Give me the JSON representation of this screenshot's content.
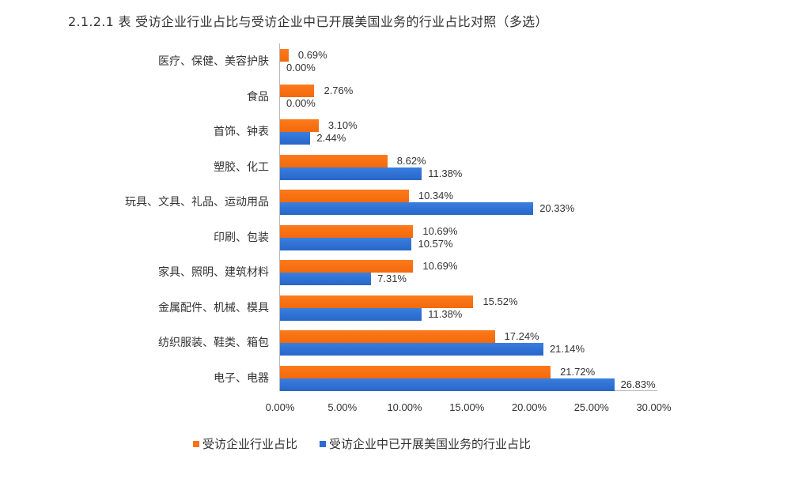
{
  "title": "2.1.2.1 表  受访企业行业占比与受访企业中已开展美国业务的行业占比对照（多选）",
  "colors": {
    "series1": "#f97316",
    "series2": "#2b6cd0"
  },
  "chart_data": {
    "type": "bar",
    "orientation": "horizontal",
    "title": "2.1.2.1 表  受访企业行业占比与受访企业中已开展美国业务的行业占比对照（多选）",
    "xlabel": "",
    "ylabel": "",
    "xlim": [
      0,
      30
    ],
    "x_ticks": [
      "0.00%",
      "5.00%",
      "10.00%",
      "15.00%",
      "20.00%",
      "25.00%",
      "30.00%"
    ],
    "grid": false,
    "legend_position": "bottom",
    "categories": [
      "医疗、保健、美容护肤",
      "食品",
      "首饰、钟表",
      "塑胶、化工",
      "玩具、文具、礼品、运动用品",
      "印刷、包装",
      "家具、照明、建筑材料",
      "金属配件、机械、模具",
      "纺织服装、鞋类、箱包",
      "电子、电器"
    ],
    "series": [
      {
        "name": "受访企业行业占比",
        "values": [
          0.69,
          2.76,
          3.1,
          8.62,
          10.34,
          10.69,
          10.69,
          15.52,
          17.24,
          21.72
        ],
        "labels": [
          "0.69%",
          "2.76%",
          "3.10%",
          "8.62%",
          "10.34%",
          "10.69%",
          "10.69%",
          "15.52%",
          "17.24%",
          "21.72%"
        ]
      },
      {
        "name": "受访企业中已开展美国业务的行业占比",
        "values": [
          0.0,
          0.0,
          2.44,
          11.38,
          20.33,
          10.57,
          7.31,
          11.38,
          21.14,
          26.83
        ],
        "labels": [
          "0.00%",
          "0.00%",
          "2.44%",
          "11.38%",
          "20.33%",
          "10.57%",
          "7.31%",
          "11.38%",
          "21.14%",
          "26.83%"
        ]
      }
    ]
  }
}
